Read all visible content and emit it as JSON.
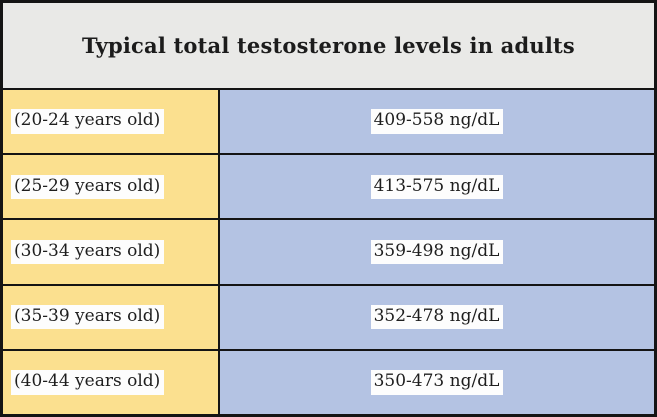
{
  "chart_data": {
    "type": "table",
    "title": "Typical total testosterone levels in adults",
    "unit": "ng/dL",
    "rows": [
      {
        "age": "(20-24 years old)",
        "level": "409-558 ng/dL",
        "range_low": 409,
        "range_high": 558
      },
      {
        "age": "(25-29 years old)",
        "level": "413-575 ng/dL",
        "range_low": 413,
        "range_high": 575
      },
      {
        "age": "(30-34 years old)",
        "level": "359-498 ng/dL",
        "range_low": 359,
        "range_high": 498
      },
      {
        "age": "(35-39 years old)",
        "level": "352-478 ng/dL",
        "range_low": 352,
        "range_high": 478
      },
      {
        "age": "(40-44 years old)",
        "level": "350-473 ng/dL",
        "range_low": 350,
        "range_high": 473
      }
    ],
    "colors": {
      "header_bg": "#e9e9e7",
      "age_column_bg": "#fbe08f",
      "level_column_bg": "#b4c3e3",
      "border": "#141414",
      "text": "#1e1e1e",
      "text_highlight_bg": "#fdfdfd"
    }
  }
}
